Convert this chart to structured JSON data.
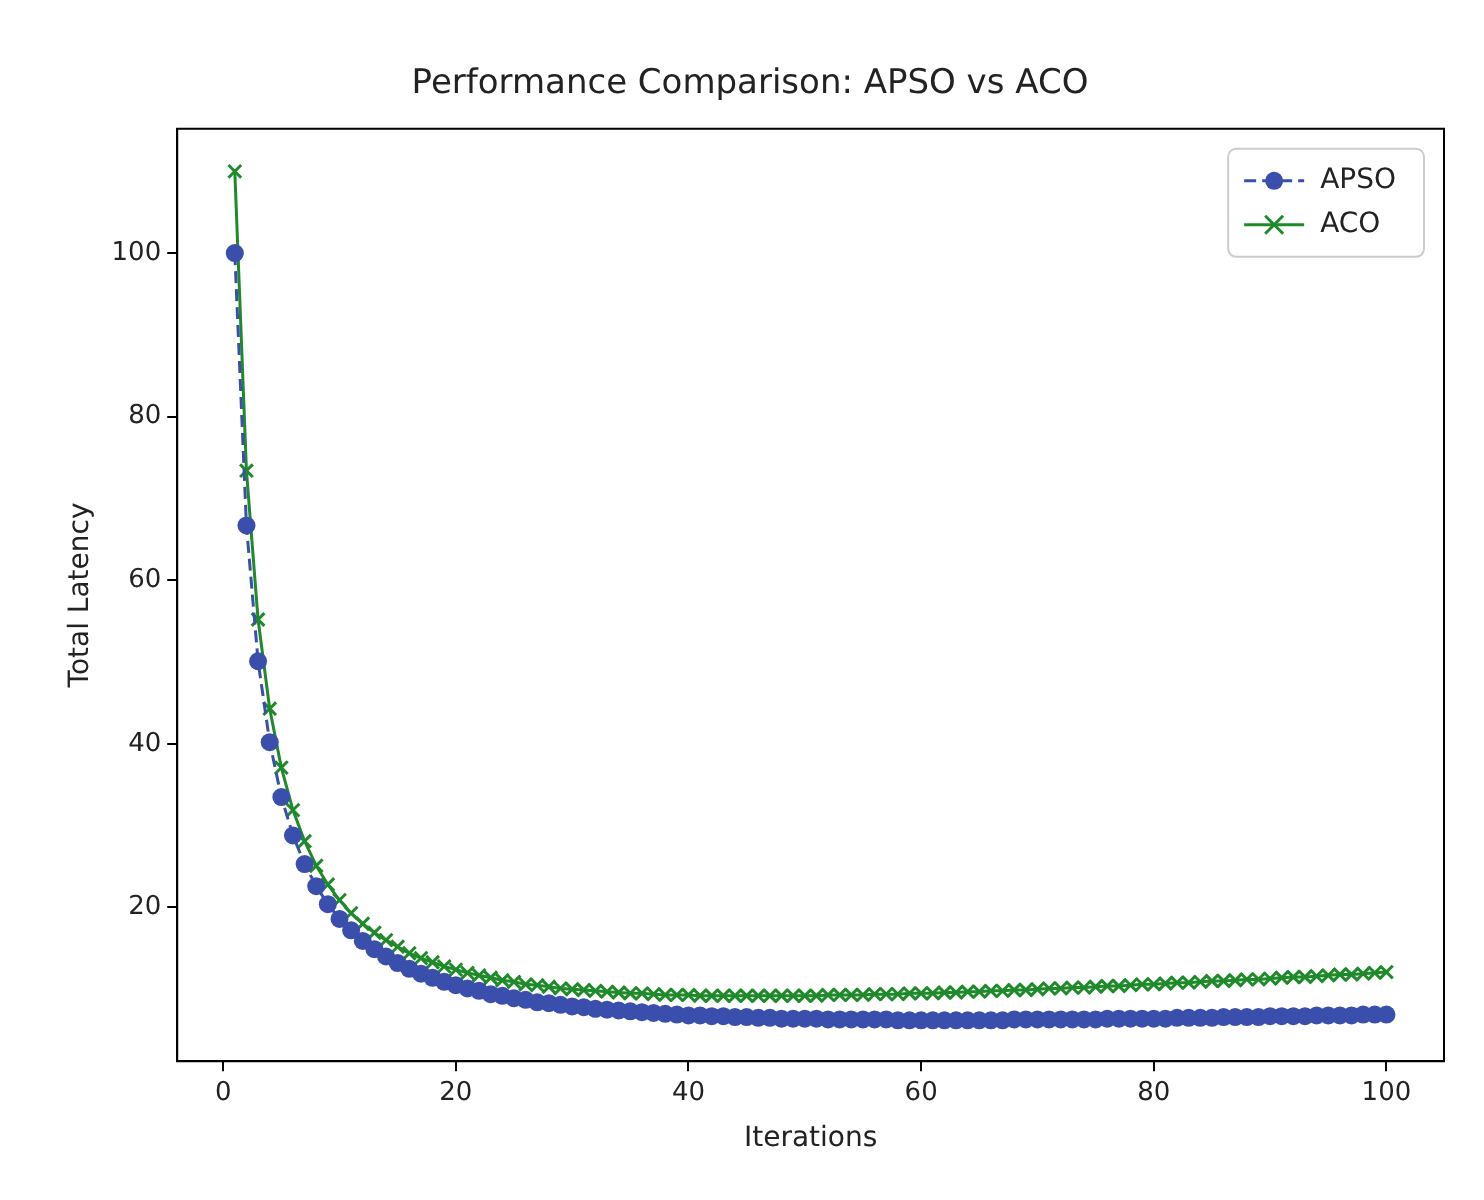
{
  "chart_data": {
    "type": "line",
    "title": "Performance Comparison: APSO vs ACO",
    "xlabel": "Iterations",
    "ylabel": "Total Latency",
    "x": [
      1,
      2,
      3,
      4,
      5,
      6,
      7,
      8,
      9,
      10,
      11,
      12,
      13,
      14,
      15,
      16,
      17,
      18,
      19,
      20,
      21,
      22,
      23,
      24,
      25,
      26,
      27,
      28,
      29,
      30,
      31,
      32,
      33,
      34,
      35,
      36,
      37,
      38,
      39,
      40,
      41,
      42,
      43,
      44,
      45,
      46,
      47,
      48,
      49,
      50,
      51,
      52,
      53,
      54,
      55,
      56,
      57,
      58,
      59,
      60,
      61,
      62,
      63,
      64,
      65,
      66,
      67,
      68,
      69,
      70,
      71,
      72,
      73,
      74,
      75,
      76,
      77,
      78,
      79,
      80,
      81,
      82,
      83,
      84,
      85,
      86,
      87,
      88,
      89,
      90,
      91,
      92,
      93,
      94,
      95,
      96,
      97,
      98,
      99,
      100
    ],
    "series": [
      {
        "name": "APSO",
        "color": "#3a4fab",
        "marker": "circle",
        "line_style": "dashed",
        "values": [
          100.0,
          66.7,
          50.1,
          40.2,
          33.5,
          28.8,
          25.3,
          22.6,
          20.4,
          18.6,
          17.2,
          15.9,
          14.9,
          14.0,
          13.2,
          12.5,
          11.9,
          11.4,
          10.9,
          10.5,
          10.1,
          9.8,
          9.4,
          9.2,
          8.9,
          8.7,
          8.4,
          8.3,
          8.1,
          7.9,
          7.8,
          7.6,
          7.5,
          7.4,
          7.3,
          7.2,
          7.1,
          7.0,
          6.9,
          6.8,
          6.8,
          6.7,
          6.7,
          6.6,
          6.6,
          6.5,
          6.5,
          6.4,
          6.4,
          6.4,
          6.4,
          6.3,
          6.3,
          6.3,
          6.3,
          6.3,
          6.3,
          6.2,
          6.2,
          6.2,
          6.2,
          6.2,
          6.2,
          6.2,
          6.2,
          6.2,
          6.2,
          6.3,
          6.3,
          6.3,
          6.3,
          6.3,
          6.3,
          6.3,
          6.3,
          6.4,
          6.4,
          6.4,
          6.4,
          6.4,
          6.4,
          6.5,
          6.5,
          6.5,
          6.5,
          6.6,
          6.6,
          6.6,
          6.6,
          6.7,
          6.7,
          6.7,
          6.7,
          6.8,
          6.8,
          6.8,
          6.8,
          6.9,
          6.9,
          6.9
        ]
      },
      {
        "name": "ACO",
        "color": "#1e8a2a",
        "marker": "cross",
        "line_style": "solid",
        "values": [
          110.0,
          73.4,
          55.2,
          44.3,
          37.1,
          31.9,
          28.1,
          25.1,
          22.8,
          20.9,
          19.3,
          18.0,
          16.9,
          16.0,
          15.2,
          14.4,
          13.8,
          13.3,
          12.8,
          12.4,
          12.0,
          11.7,
          11.4,
          11.1,
          10.9,
          10.6,
          10.5,
          10.3,
          10.1,
          10.0,
          9.9,
          9.8,
          9.7,
          9.6,
          9.5,
          9.5,
          9.4,
          9.3,
          9.3,
          9.3,
          9.2,
          9.2,
          9.2,
          9.2,
          9.2,
          9.2,
          9.2,
          9.2,
          9.2,
          9.2,
          9.2,
          9.3,
          9.3,
          9.3,
          9.3,
          9.4,
          9.4,
          9.4,
          9.5,
          9.5,
          9.5,
          9.6,
          9.6,
          9.7,
          9.7,
          9.8,
          9.8,
          9.9,
          9.9,
          10.0,
          10.1,
          10.1,
          10.2,
          10.2,
          10.3,
          10.4,
          10.4,
          10.5,
          10.6,
          10.6,
          10.7,
          10.8,
          10.8,
          10.9,
          11.0,
          11.0,
          11.1,
          11.2,
          11.2,
          11.3,
          11.4,
          11.5,
          11.5,
          11.6,
          11.7,
          11.8,
          11.8,
          11.9,
          12.0,
          12.1
        ]
      }
    ],
    "xlim": [
      -3.95,
      104.95
    ],
    "xticks": [
      0,
      20,
      40,
      60,
      80,
      100
    ],
    "ylim": [
      1.2,
      115.2
    ],
    "yticks": [
      20,
      40,
      60,
      80,
      100
    ],
    "grid": false,
    "legend": "top right"
  }
}
